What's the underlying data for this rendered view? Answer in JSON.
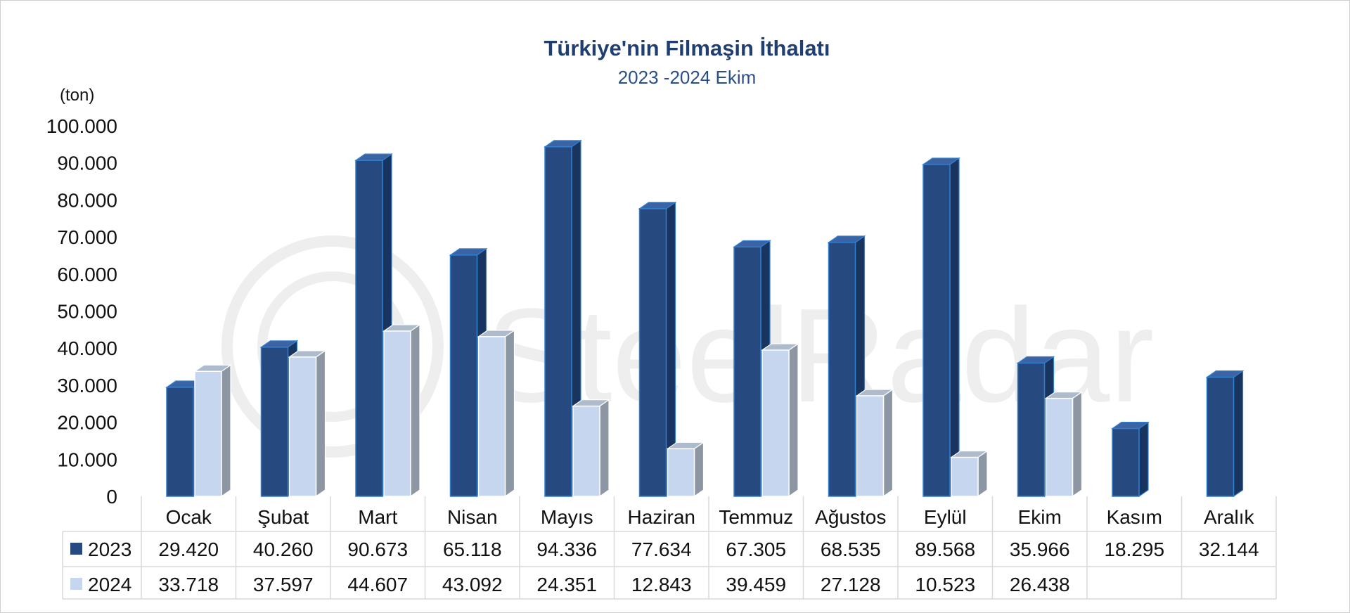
{
  "watermark": "SteelRadar",
  "colors": {
    "series_2023": "#264a80",
    "series_2023_side": "#1a3460",
    "series_2023_top": "#3c64a4",
    "series_2024": "#c5d6ee",
    "series_2024_side": "#8d97a4",
    "series_2024_top": "#aebbcc",
    "text": "#111111",
    "title": "#1f3f73",
    "grid": "#d9d9d9"
  },
  "chart_data": {
    "type": "bar",
    "title": "Türkiye'nin Filmaşin İthalatı",
    "subtitle": "2023 -2024 Ekim",
    "unit_label": "(ton)",
    "ylim": [
      0,
      100000
    ],
    "y_ticks": [
      "0",
      "10.000",
      "20.000",
      "30.000",
      "40.000",
      "50.000",
      "60.000",
      "70.000",
      "80.000",
      "90.000",
      "100.000"
    ],
    "categories": [
      "Ocak",
      "Şubat",
      "Mart",
      "Nisan",
      "Mayıs",
      "Haziran",
      "Temmuz",
      "Ağustos",
      "Eylül",
      "Ekim",
      "Kasım",
      "Aralık"
    ],
    "series": [
      {
        "name": "2023",
        "values": [
          29420,
          40260,
          90673,
          65118,
          94336,
          77634,
          67305,
          68535,
          89568,
          35966,
          18295,
          32144
        ],
        "labels": [
          "29.420",
          "40.260",
          "90.673",
          "65.118",
          "94.336",
          "77.634",
          "67.305",
          "68.535",
          "89.568",
          "35.966",
          "18.295",
          "32.144"
        ]
      },
      {
        "name": "2024",
        "values": [
          33718,
          37597,
          44607,
          43092,
          24351,
          12843,
          39459,
          27128,
          10523,
          26438,
          null,
          null
        ],
        "labels": [
          "33.718",
          "37.597",
          "44.607",
          "43.092",
          "24.351",
          "12.843",
          "39.459",
          "27.128",
          "10.523",
          "26.438",
          "",
          ""
        ]
      }
    ],
    "legend": "data-table",
    "grid": false
  }
}
